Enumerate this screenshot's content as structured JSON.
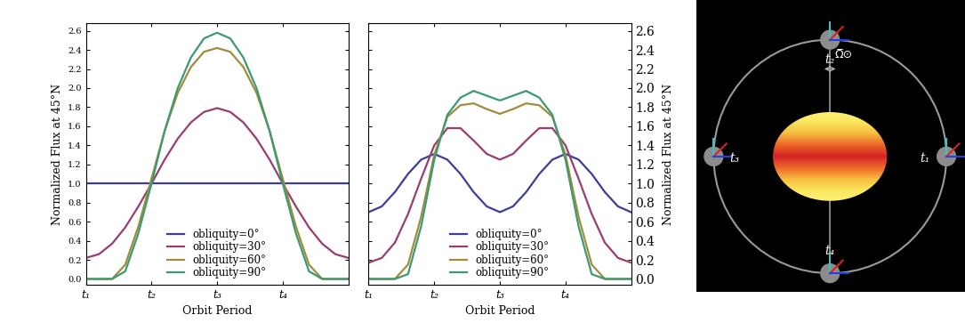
{
  "chart_data": [
    {
      "type": "line",
      "x_label": "Orbit Period",
      "y_label": "Normalized Flux at 45°N",
      "x": [
        0,
        0.05,
        0.1,
        0.15,
        0.2,
        0.25,
        0.3,
        0.35,
        0.4,
        0.45,
        0.5,
        0.55,
        0.6,
        0.65,
        0.7,
        0.75,
        0.8,
        0.85,
        0.9,
        0.95,
        1
      ],
      "xlim": [
        0,
        1
      ],
      "xticks": [
        {
          "value": 0,
          "label": "t₁"
        },
        {
          "value": 0.25,
          "label": "t₂"
        },
        {
          "value": 0.5,
          "label": "t₃"
        },
        {
          "value": 0.75,
          "label": "t₄"
        }
      ],
      "ylim": [
        -0.06,
        2.68
      ],
      "yticks": [
        {
          "value": 0,
          "label": "0.0"
        },
        0.2,
        0.4,
        0.6,
        0.8,
        {
          "value": 1,
          "label": "1.0"
        },
        1.2,
        1.4,
        1.6,
        1.8,
        {
          "value": 2,
          "label": "2.0"
        },
        2.2,
        2.4,
        2.6
      ],
      "grid": false,
      "legend": "lower center",
      "series": [
        {
          "name": "obliquity=0°",
          "color": "#3d3d99",
          "values": [
            1.0,
            1.0,
            1.0,
            1.0,
            1.0,
            1.0,
            1.0,
            1.0,
            1.0,
            1.0,
            1.0,
            1.0,
            1.0,
            1.0,
            1.0,
            1.0,
            1.0,
            1.0,
            1.0,
            1.0,
            1.0
          ]
        },
        {
          "name": "obliquity=30°",
          "color": "#993d71",
          "values": [
            0.22,
            0.26,
            0.37,
            0.54,
            0.76,
            1.0,
            1.25,
            1.47,
            1.64,
            1.75,
            1.79,
            1.75,
            1.64,
            1.47,
            1.25,
            1.0,
            0.76,
            0.54,
            0.37,
            0.26,
            0.22
          ]
        },
        {
          "name": "obliquity=60°",
          "color": "#a08c3c",
          "values": [
            0,
            0,
            0,
            0.15,
            0.55,
            1.05,
            1.55,
            1.95,
            2.22,
            2.38,
            2.42,
            2.38,
            2.22,
            1.95,
            1.55,
            1.05,
            0.55,
            0.15,
            0,
            0,
            0
          ]
        },
        {
          "name": "obliquity=90°",
          "color": "#3d9970",
          "values": [
            0,
            0,
            0,
            0.08,
            0.48,
            1.0,
            1.55,
            2.0,
            2.32,
            2.52,
            2.58,
            2.52,
            2.32,
            2.0,
            1.55,
            1.0,
            0.48,
            0.08,
            0,
            0,
            0
          ]
        }
      ]
    },
    {
      "type": "line",
      "x_label": "Orbit Period",
      "y_label": "Normalized Flux at 45°N",
      "x": [
        0,
        0.05,
        0.1,
        0.15,
        0.2,
        0.25,
        0.3,
        0.35,
        0.4,
        0.45,
        0.5,
        0.55,
        0.6,
        0.65,
        0.7,
        0.75,
        0.8,
        0.85,
        0.9,
        0.95,
        1
      ],
      "xlim": [
        0,
        1
      ],
      "xticks": [
        {
          "value": 0,
          "label": "t₁"
        },
        {
          "value": 0.25,
          "label": "t₂"
        },
        {
          "value": 0.5,
          "label": "t₃"
        },
        {
          "value": 0.75,
          "label": "t₄"
        }
      ],
      "ylim": [
        -0.06,
        2.68
      ],
      "yticks": [
        {
          "value": 0,
          "label": "0.0"
        },
        0.2,
        0.4,
        0.6,
        0.8,
        {
          "value": 1,
          "label": "1.0"
        },
        1.2,
        1.4,
        1.6,
        1.8,
        {
          "value": 2,
          "label": "2.0"
        },
        2.2,
        2.4,
        2.6
      ],
      "grid": false,
      "legend": "lower center",
      "series": [
        {
          "name": "obliquity=0°",
          "color": "#3d3d99",
          "values": [
            0.7,
            0.76,
            0.91,
            1.1,
            1.25,
            1.31,
            1.25,
            1.1,
            0.91,
            0.76,
            0.7,
            0.76,
            0.91,
            1.1,
            1.25,
            1.31,
            1.25,
            1.1,
            0.91,
            0.76,
            0.7
          ]
        },
        {
          "name": "obliquity=30°",
          "color": "#993d71",
          "values": [
            0.17,
            0.22,
            0.38,
            0.68,
            1.05,
            1.4,
            1.58,
            1.58,
            1.45,
            1.31,
            1.25,
            1.31,
            1.45,
            1.58,
            1.58,
            1.4,
            1.05,
            0.68,
            0.38,
            0.22,
            0.17
          ]
        },
        {
          "name": "obliquity=60°",
          "color": "#a08c3c",
          "values": [
            0,
            0,
            0,
            0.15,
            0.65,
            1.3,
            1.7,
            1.82,
            1.84,
            1.78,
            1.73,
            1.78,
            1.84,
            1.82,
            1.7,
            1.3,
            0.65,
            0.15,
            0,
            0,
            0
          ]
        },
        {
          "name": "obliquity=90°",
          "color": "#3d9970",
          "values": [
            0,
            0,
            0,
            0.05,
            0.55,
            1.25,
            1.72,
            1.9,
            1.97,
            1.92,
            1.87,
            1.92,
            1.97,
            1.9,
            1.72,
            1.25,
            0.55,
            0.05,
            0,
            0,
            0
          ]
        }
      ]
    }
  ],
  "diagram": {
    "orbit_labels": [
      "t₁",
      "t₂",
      "t₃",
      "t₄"
    ],
    "axis_label": "Ω̅⊙"
  }
}
